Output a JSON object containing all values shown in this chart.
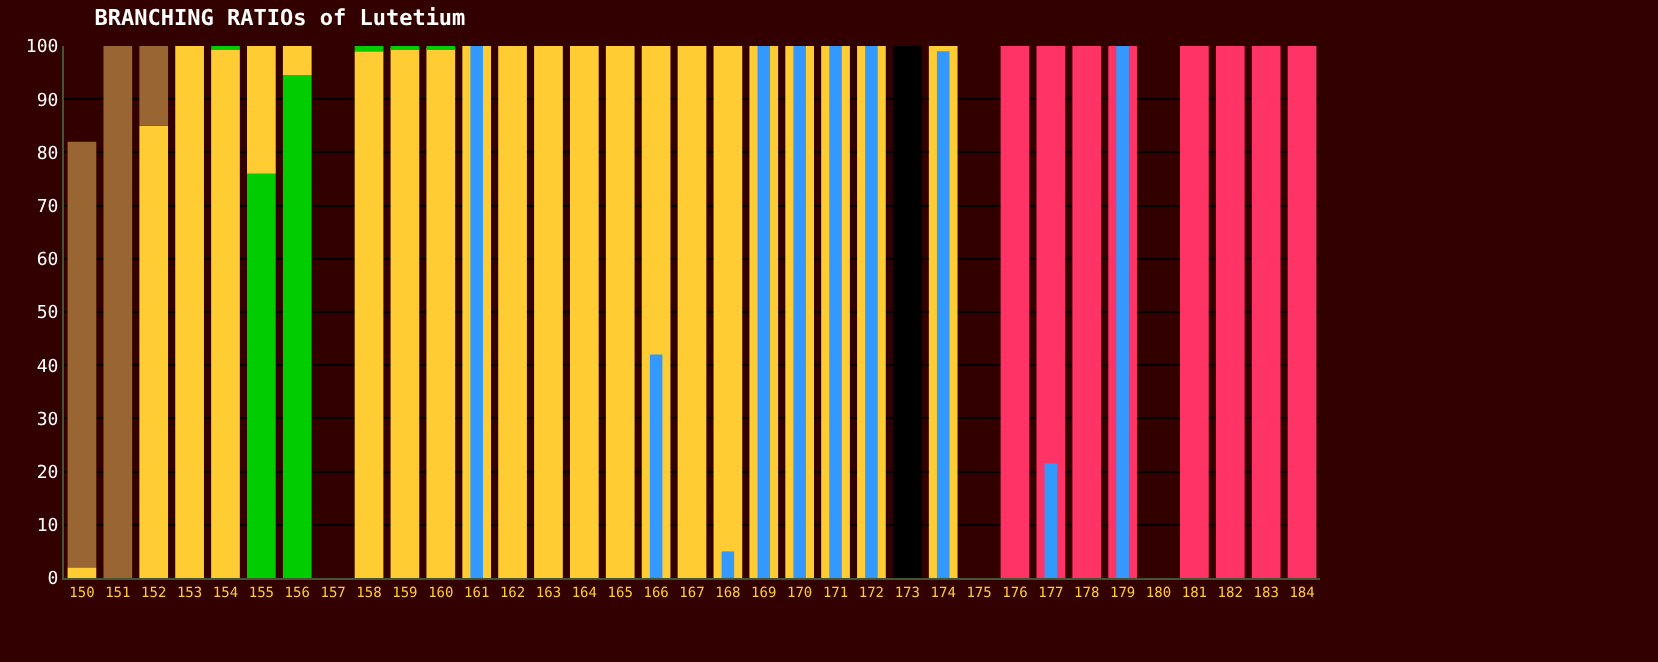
{
  "chart_data": [
    {
      "type": "bar",
      "title": "BRANCHING RATIOs of Lutetium",
      "stacked": true,
      "categories": [
        "150",
        "151",
        "152",
        "153",
        "154",
        "155",
        "156",
        "157",
        "158",
        "159",
        "160",
        "161",
        "162",
        "163",
        "164",
        "165",
        "166",
        "167",
        "168",
        "169",
        "170",
        "171",
        "172",
        "173",
        "174",
        "175",
        "176",
        "177",
        "178",
        "179",
        "180",
        "181",
        "182",
        "183",
        "184"
      ],
      "series": [
        {
          "color": "#00cc00",
          "values": [
            null,
            null,
            null,
            null,
            null,
            76,
            94.5,
            null,
            null,
            null,
            null,
            null,
            null,
            null,
            null,
            null,
            null,
            null,
            null,
            null,
            null,
            null,
            null,
            null,
            null,
            null,
            null,
            null,
            null,
            null,
            null,
            null,
            null,
            null,
            null
          ]
        },
        {
          "color": "#ffcc33",
          "values": [
            2,
            null,
            85,
            100,
            99.4,
            24,
            5.5,
            null,
            99,
            99.6,
            99.6,
            100,
            100,
            100,
            100,
            100,
            100,
            100,
            100,
            100,
            100,
            100,
            100,
            null,
            100,
            null,
            null,
            null,
            null,
            null,
            null,
            null,
            null,
            null,
            null
          ]
        },
        {
          "color": "#00cc00",
          "values": [
            null,
            null,
            null,
            null,
            0.6,
            null,
            null,
            null,
            1,
            0.4,
            0.4,
            null,
            null,
            null,
            null,
            null,
            null,
            null,
            null,
            null,
            null,
            null,
            null,
            null,
            null,
            null,
            null,
            null,
            null,
            null,
            null,
            null,
            null,
            null,
            null
          ]
        },
        {
          "color": "#996633",
          "values": [
            80,
            100,
            15,
            null,
            null,
            null,
            null,
            null,
            null,
            null,
            null,
            null,
            null,
            null,
            null,
            null,
            null,
            null,
            null,
            null,
            null,
            null,
            null,
            null,
            null,
            null,
            null,
            null,
            null,
            null,
            null,
            null,
            null,
            null,
            null
          ]
        },
        {
          "color": "#ff3366",
          "values": [
            null,
            null,
            null,
            null,
            null,
            null,
            null,
            null,
            null,
            null,
            null,
            null,
            null,
            null,
            null,
            null,
            null,
            null,
            null,
            null,
            null,
            null,
            null,
            null,
            null,
            null,
            100,
            100,
            100,
            100,
            null,
            100,
            100,
            100,
            100
          ]
        },
        {
          "color": "#000000",
          "values": [
            null,
            null,
            null,
            null,
            null,
            null,
            null,
            null,
            null,
            null,
            null,
            null,
            null,
            null,
            null,
            null,
            null,
            null,
            null,
            null,
            null,
            null,
            null,
            100,
            null,
            null,
            null,
            null,
            null,
            null,
            null,
            null,
            null,
            null,
            null
          ]
        }
      ],
      "ylim": [
        0,
        100
      ],
      "yticks": [
        0,
        10,
        20,
        30,
        40,
        50,
        60,
        70,
        80,
        90,
        100
      ],
      "grid": "y"
    },
    {
      "type": "bar",
      "categories": [
        "150",
        "151",
        "152",
        "153",
        "154",
        "155",
        "156",
        "157",
        "158",
        "159",
        "160",
        "161",
        "162",
        "163",
        "164",
        "165",
        "166",
        "167",
        "168",
        "169",
        "170",
        "171",
        "172",
        "173",
        "174",
        "175",
        "176",
        "177",
        "178",
        "179",
        "180",
        "181",
        "182",
        "183",
        "184"
      ],
      "color": "#3399ff",
      "values": [
        null,
        null,
        null,
        null,
        null,
        null,
        null,
        null,
        null,
        null,
        null,
        100,
        null,
        null,
        null,
        null,
        42,
        null,
        5,
        100,
        100,
        100,
        100,
        null,
        99,
        null,
        null,
        21.5,
        null,
        100,
        null,
        null,
        null,
        null,
        null
      ],
      "ylim": [
        0,
        100
      ],
      "yticks": [
        0,
        10,
        20,
        30,
        40,
        50,
        60,
        70,
        80,
        90,
        100
      ],
      "tick_labels": false
    }
  ]
}
